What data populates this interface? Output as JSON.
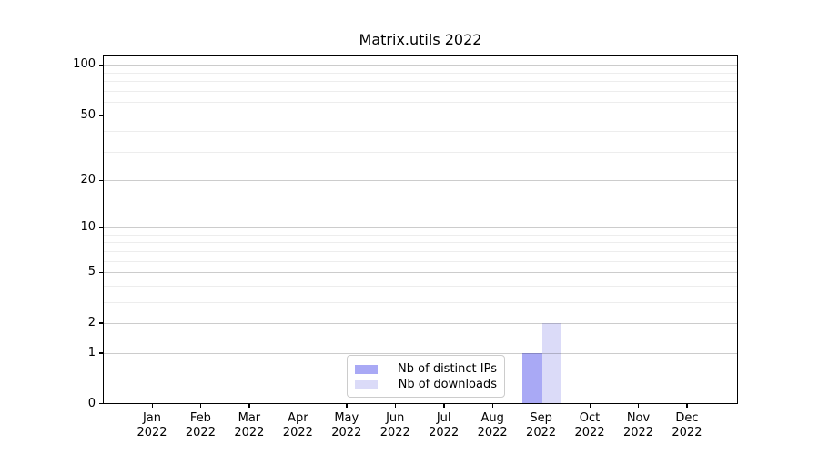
{
  "title": "Matrix.utils 2022",
  "chart_data": {
    "type": "bar",
    "title": "Matrix.utils 2022",
    "categories": [
      "Jan",
      "Feb",
      "Mar",
      "Apr",
      "May",
      "Jun",
      "Jul",
      "Aug",
      "Sep",
      "Oct",
      "Nov",
      "Dec"
    ],
    "category_year": "2022",
    "series": [
      {
        "name": "Nb of distinct IPs",
        "color": "#a9a9f5",
        "values": [
          0,
          0,
          0,
          0,
          0,
          0,
          0,
          0,
          1,
          0,
          0,
          0
        ]
      },
      {
        "name": "Nb of downloads",
        "color": "#dbdbf8",
        "values": [
          0,
          0,
          0,
          0,
          0,
          0,
          0,
          0,
          2,
          0,
          0,
          0
        ]
      }
    ],
    "y_scale": "log10(1+y)",
    "y_major_ticks": [
      0,
      1,
      2,
      5,
      10,
      20,
      50,
      100
    ],
    "y_minor_ticks": [
      3,
      4,
      6,
      7,
      8,
      9,
      30,
      40,
      60,
      70,
      80,
      90
    ],
    "ylim": [
      0,
      115
    ],
    "xlabel": "",
    "ylabel": "",
    "grid": "both",
    "legend_position": "lower center",
    "axis_color": "#000000",
    "grid_major_color": "#cccccc",
    "grid_minor_color": "#ededed"
  }
}
